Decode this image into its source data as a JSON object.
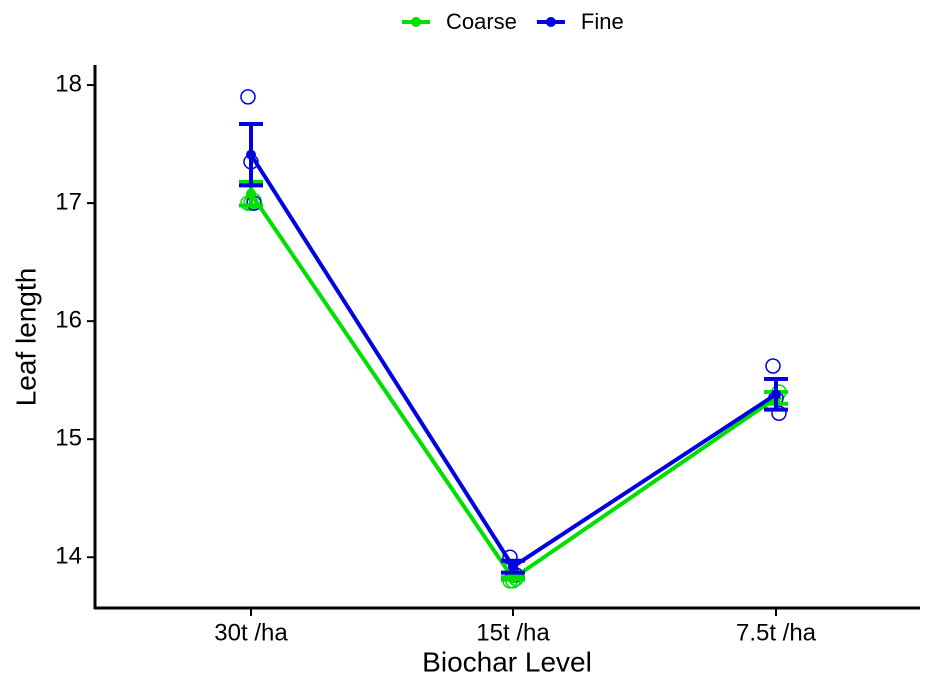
{
  "chart_data": {
    "type": "line",
    "x_label": "Biochar Level",
    "y_label": "Leaf length",
    "categories": [
      "30t /ha",
      "15t /ha",
      "7.5t /ha"
    ],
    "series": [
      {
        "name": "Coarse",
        "color": "#00e000",
        "values": [
          17.08,
          13.82,
          15.35
        ],
        "errors": [
          0.1,
          0.01,
          0.05
        ],
        "points": [
          [
            17.0,
            17.0,
            17.02
          ],
          [
            13.8,
            13.8,
            13.82
          ],
          [
            15.3,
            15.35,
            15.4
          ]
        ]
      },
      {
        "name": "Fine",
        "color": "#0000e0",
        "values": [
          17.41,
          13.92,
          15.38
        ],
        "errors": [
          0.26,
          0.05,
          0.13
        ],
        "points": [
          [
            17.9,
            17.35,
            17.0
          ],
          [
            14.0,
            13.85,
            13.85
          ],
          [
            15.62,
            15.35,
            15.22
          ]
        ]
      }
    ],
    "ylim": [
      13.57,
      18.17
    ],
    "yticks": [
      14,
      15,
      16,
      17,
      18
    ],
    "legend": "top",
    "grid": false
  }
}
